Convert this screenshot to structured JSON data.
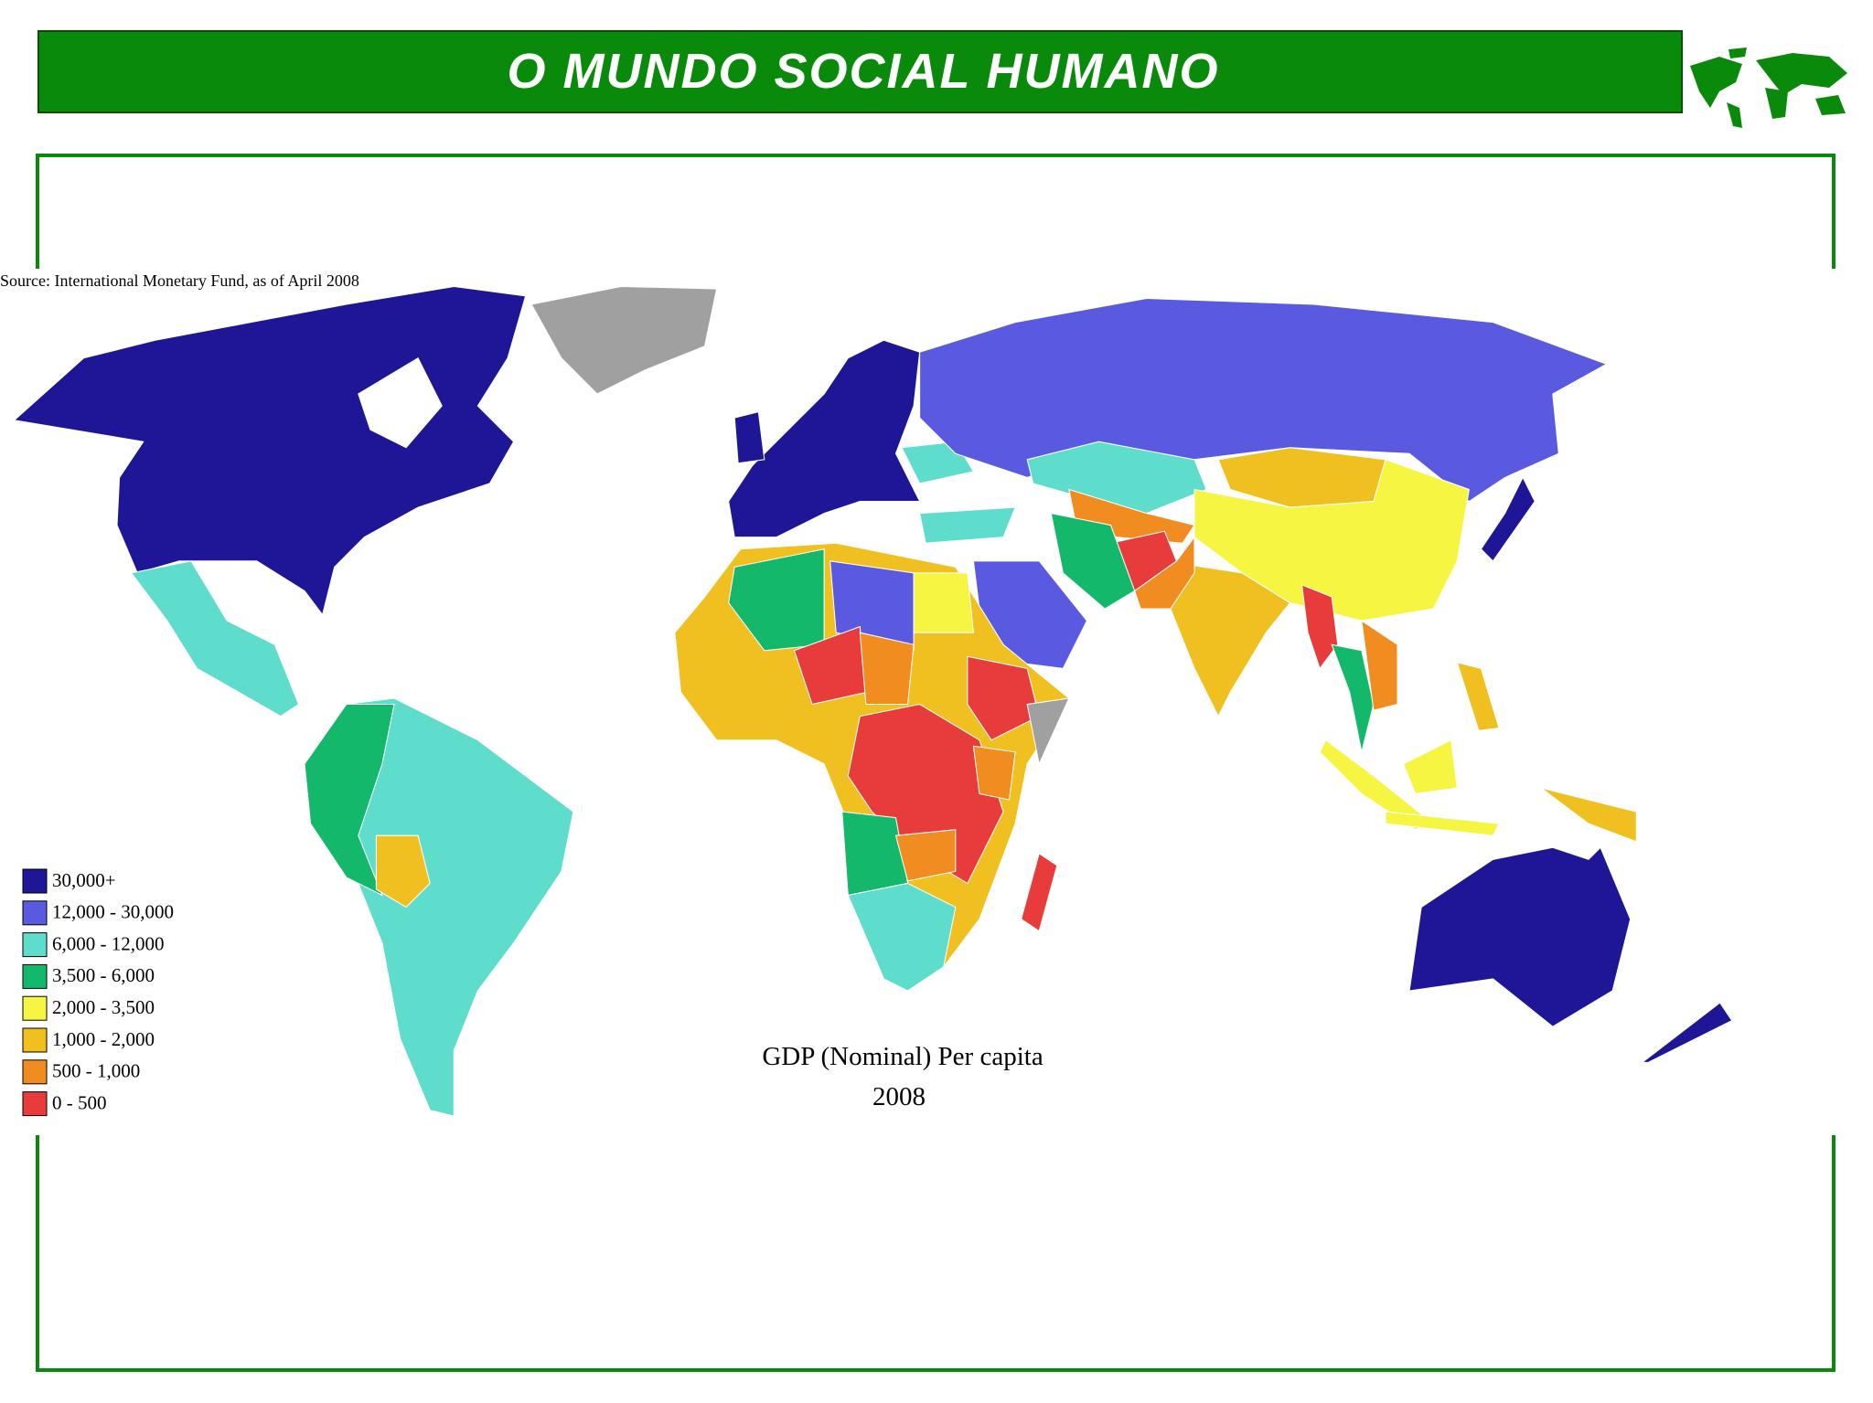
{
  "header": {
    "title": "O MUNDO SOCIAL HUMANO"
  },
  "map": {
    "source": "Source: International Monetary Fund, as of April 2008",
    "title": "GDP (Nominal) Per capita",
    "year": "2008",
    "legend": [
      {
        "label": "30,000+",
        "color": "#1e1696"
      },
      {
        "label": "12,000 - 30,000",
        "color": "#5a5ae0"
      },
      {
        "label": "6,000 - 12,000",
        "color": "#5edccc"
      },
      {
        "label": "3,500 - 6,000",
        "color": "#13b86a"
      },
      {
        "label": "2,000 - 3,500",
        "color": "#f5f542"
      },
      {
        "label": "1,000 - 2,000",
        "color": "#f0c020"
      },
      {
        "label": "500 - 1,000",
        "color": "#f08c20"
      },
      {
        "label": "0 - 500",
        "color": "#e83c3c"
      }
    ]
  }
}
